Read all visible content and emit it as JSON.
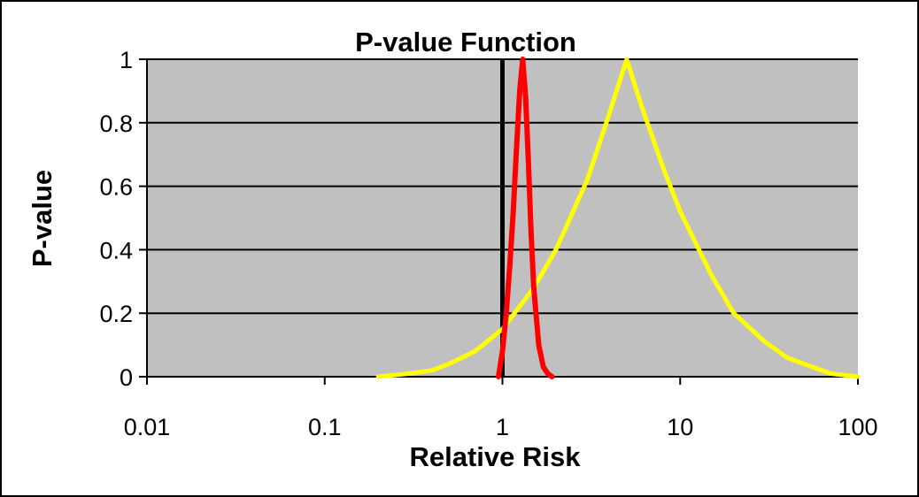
{
  "chart_data": {
    "type": "line",
    "title": "P-value Function",
    "xlabel": "Relative Risk",
    "ylabel": "P-value",
    "x_scale": "log",
    "xlim": [
      0.01,
      100
    ],
    "ylim": [
      0,
      1
    ],
    "x_ticks": [
      "0.01",
      "0.1",
      "1",
      "10",
      "100"
    ],
    "y_ticks": [
      "0",
      "0.2",
      "0.4",
      "0.6",
      "0.8",
      "1"
    ],
    "grid": "horizontal",
    "legend": "none",
    "plot_background": "#C0C0C0",
    "reference_line": {
      "x": 1,
      "color": "#000000"
    },
    "series": [
      {
        "color": "#FFFF00",
        "x": [
          0.2,
          0.3,
          0.4,
          0.5,
          0.7,
          1.0,
          1.5,
          2.0,
          3.0,
          4.0,
          5.0,
          6.0,
          8.0,
          10,
          15,
          20,
          30,
          40,
          50,
          70,
          100
        ],
        "y": [
          0.0,
          0.01,
          0.02,
          0.04,
          0.08,
          0.15,
          0.28,
          0.4,
          0.62,
          0.83,
          1.0,
          0.86,
          0.66,
          0.52,
          0.32,
          0.2,
          0.11,
          0.06,
          0.04,
          0.01,
          0.0
        ]
      },
      {
        "color": "#FF0000",
        "x": [
          0.95,
          1.0,
          1.05,
          1.1,
          1.15,
          1.2,
          1.25,
          1.3,
          1.35,
          1.4,
          1.45,
          1.5,
          1.6,
          1.7,
          1.8,
          1.9
        ],
        "y": [
          0.0,
          0.08,
          0.2,
          0.35,
          0.52,
          0.72,
          0.9,
          1.0,
          0.88,
          0.68,
          0.45,
          0.28,
          0.1,
          0.03,
          0.01,
          0.0
        ]
      }
    ]
  }
}
